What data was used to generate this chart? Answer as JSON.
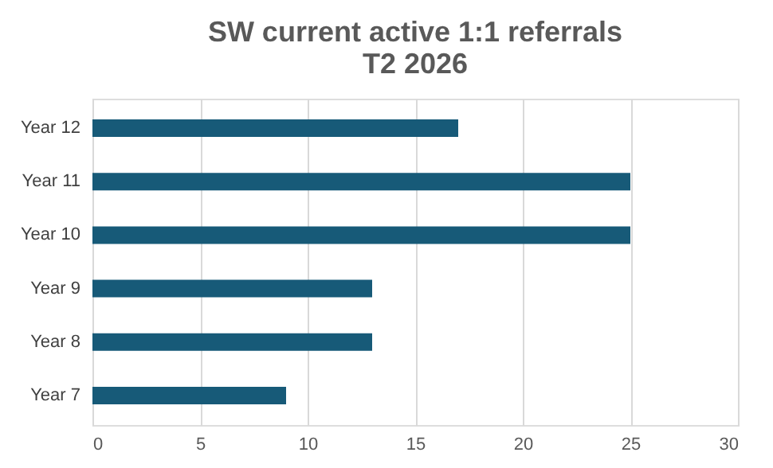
{
  "chart_data": {
    "type": "bar",
    "orientation": "horizontal",
    "title": "SW current active 1:1 referrals\nT2 2026",
    "categories": [
      "Year 12",
      "Year 11",
      "Year 10",
      "Year 9",
      "Year 8",
      "Year 7"
    ],
    "values": [
      17,
      25,
      25,
      13,
      13,
      9
    ],
    "color": "#175a78",
    "xlim": [
      0,
      30
    ],
    "xticks": [
      0,
      5,
      10,
      15,
      20,
      25,
      30
    ],
    "grid": "x"
  }
}
